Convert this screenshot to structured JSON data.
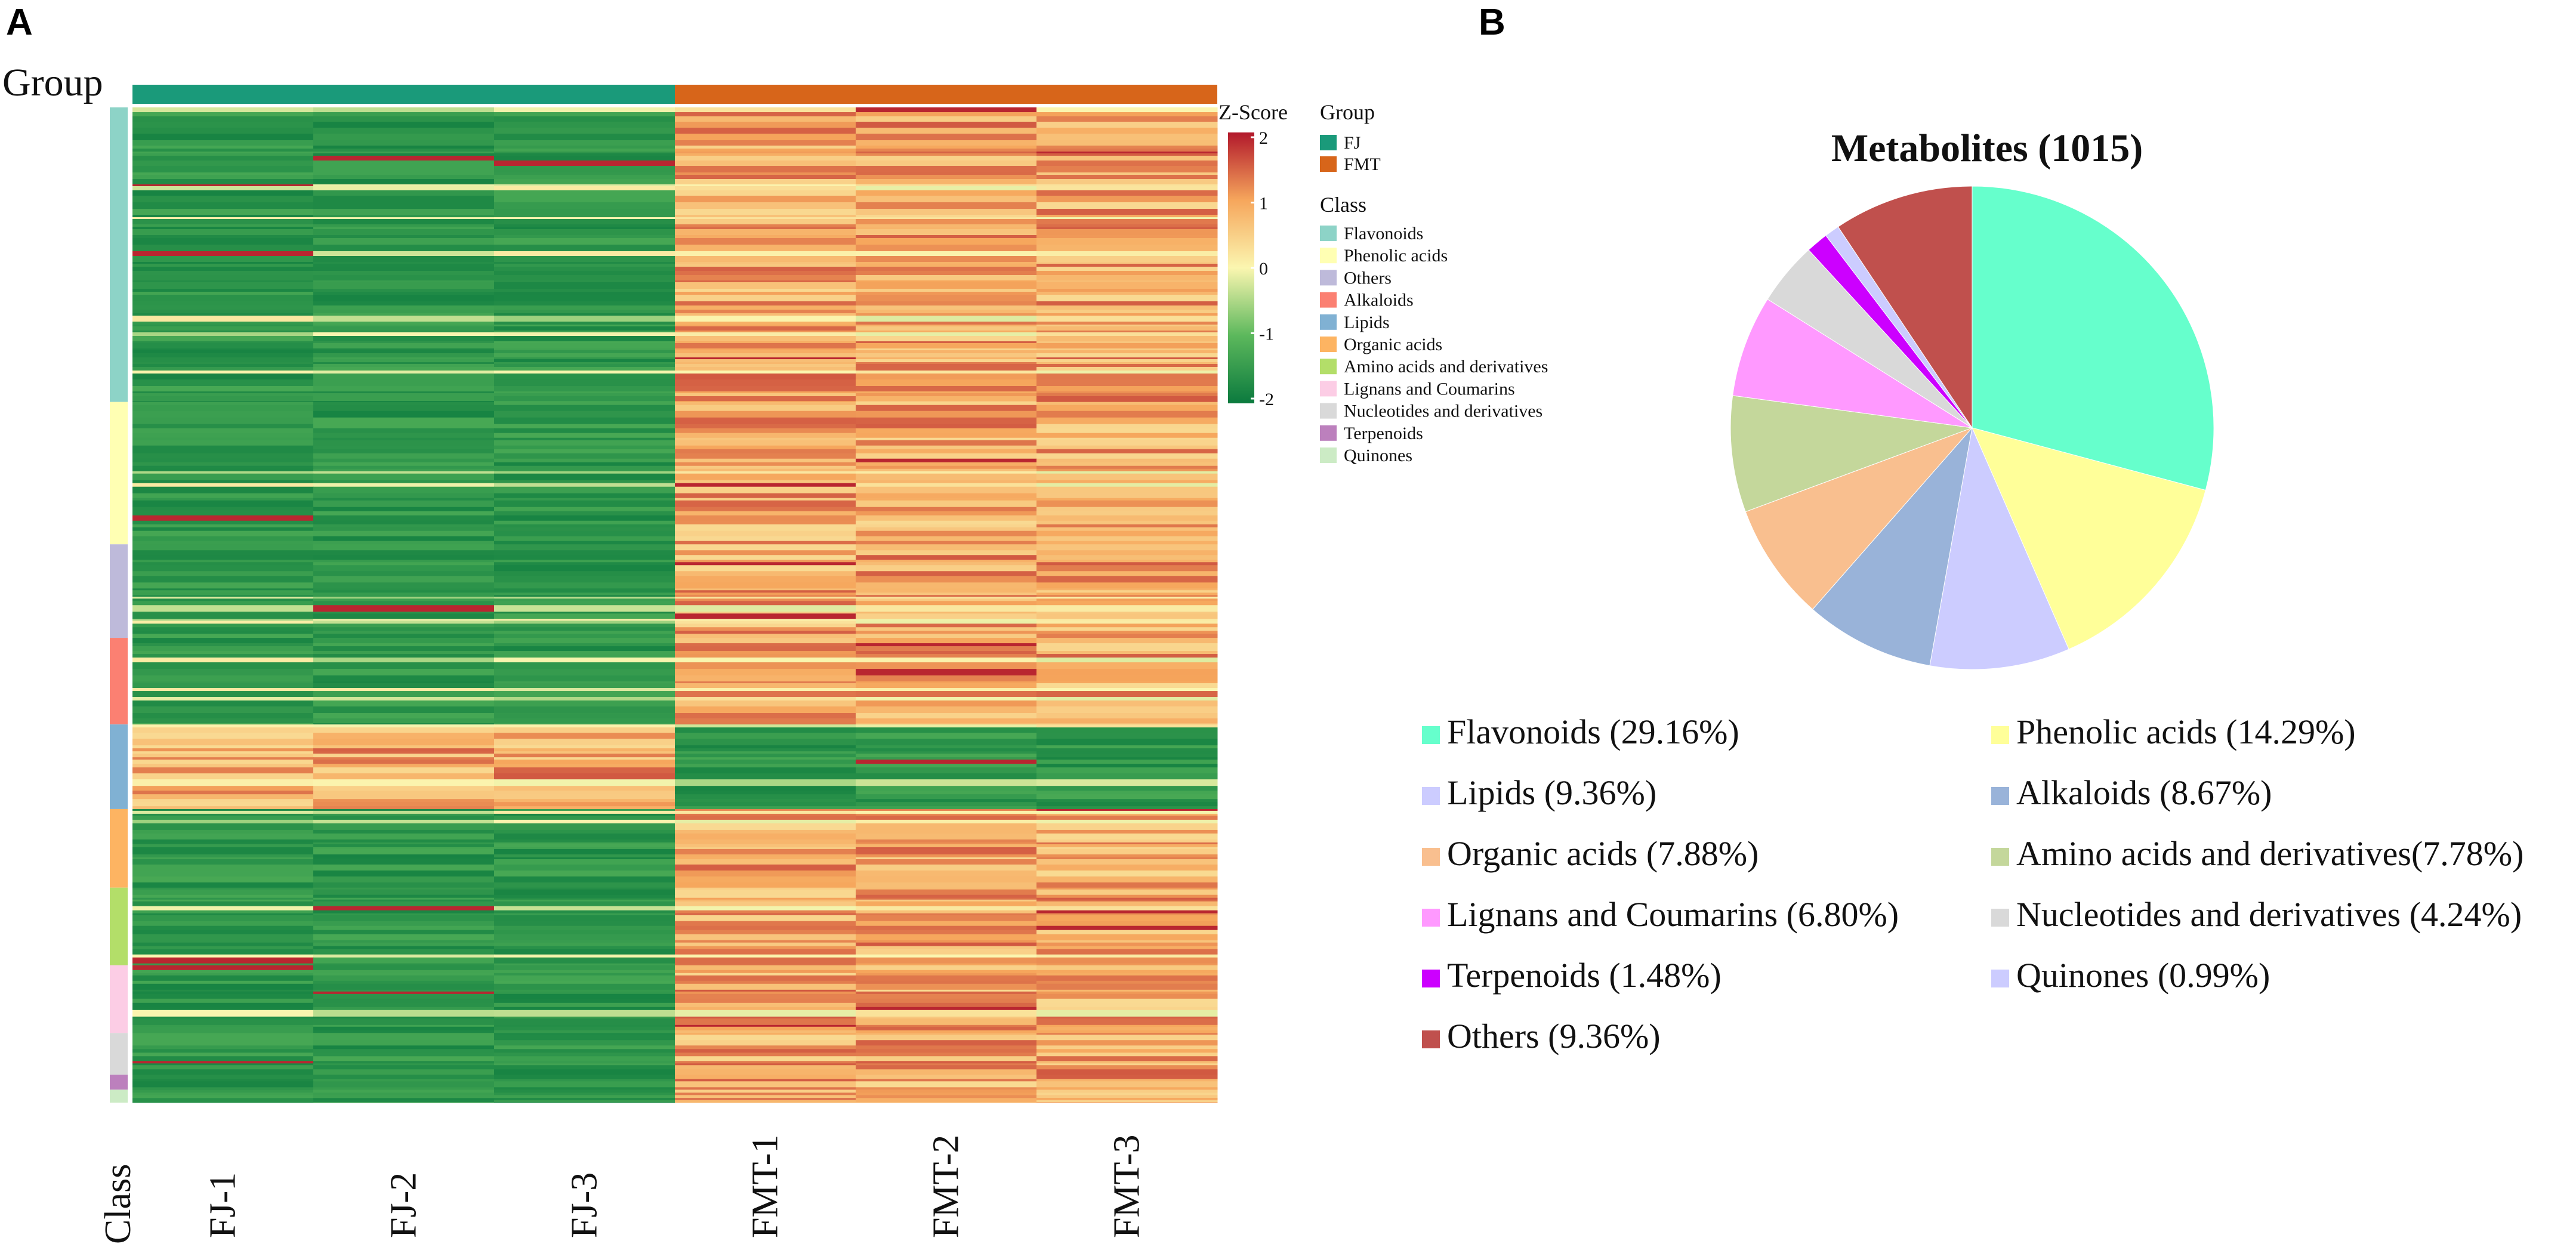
{
  "chart_data": [
    {
      "panel": "A",
      "type": "heatmap",
      "group_label": "Group",
      "class_label": "Class",
      "columns": [
        "FJ-1",
        "FJ-2",
        "FJ-3",
        "FMT-1",
        "FMT-2",
        "FMT-3"
      ],
      "groups": [
        {
          "name": "FJ",
          "color": "#1a9a7a",
          "columns": [
            "FJ-1",
            "FJ-2",
            "FJ-3"
          ]
        },
        {
          "name": "FMT",
          "color": "#d7651a",
          "columns": [
            "FMT-1",
            "FMT-2",
            "FMT-3"
          ]
        }
      ],
      "legend": {
        "zscore_title": "Z-Score",
        "zscore_ticks": [
          "2",
          "1",
          "0",
          "-1",
          "-2"
        ],
        "zscore_colors": [
          "#b2182b",
          "#f6a65c",
          "#fbf6b0",
          "#5cb85c",
          "#0b7a3e"
        ],
        "group_title": "Group",
        "class_title": "Class",
        "classes": [
          {
            "name": "Flavonoids",
            "color": "#8dd3c7"
          },
          {
            "name": "Phenolic acids",
            "color": "#ffffb3"
          },
          {
            "name": "Others",
            "color": "#bebada"
          },
          {
            "name": "Alkaloids",
            "color": "#fb8072"
          },
          {
            "name": "Lipids",
            "color": "#80b1d3"
          },
          {
            "name": "Organic acids",
            "color": "#fdb462"
          },
          {
            "name": "Amino acids and derivatives",
            "color": "#b3de69"
          },
          {
            "name": "Lignans and Coumarins",
            "color": "#fccde5"
          },
          {
            "name": "Nucleotides and derivatives",
            "color": "#d9d9d9"
          },
          {
            "name": "Terpenoids",
            "color": "#bc80bd"
          },
          {
            "name": "Quinones",
            "color": "#ccebc5"
          }
        ]
      },
      "row_blocks": [
        {
          "class": "Flavonoids",
          "share": 0.296,
          "FJ": "low",
          "FMT": "high"
        },
        {
          "class": "Phenolic acids",
          "share": 0.143,
          "FJ": "low",
          "FMT": "high"
        },
        {
          "class": "Others",
          "share": 0.094,
          "FJ": "low",
          "FMT": "high"
        },
        {
          "class": "Alkaloids",
          "share": 0.087,
          "FJ": "low",
          "FMT": "high"
        },
        {
          "class": "Lipids",
          "share": 0.085,
          "FJ": "high",
          "FMT": "low"
        },
        {
          "class": "Organic acids",
          "share": 0.079,
          "FJ": "low",
          "FMT": "high"
        },
        {
          "class": "Amino acids and derivatives",
          "share": 0.078,
          "FJ": "low",
          "FMT": "high"
        },
        {
          "class": "Lignans and Coumarins",
          "share": 0.068,
          "FJ": "low",
          "FMT": "high"
        },
        {
          "class": "Nucleotides and derivatives",
          "share": 0.042,
          "FJ": "low",
          "FMT": "high"
        },
        {
          "class": "Terpenoids",
          "share": 0.015,
          "FJ": "low",
          "FMT": "high"
        },
        {
          "class": "Quinones",
          "share": 0.013,
          "FJ": "low",
          "FMT": "high"
        }
      ]
    },
    {
      "panel": "B",
      "type": "pie",
      "title": "Metabolites (1015)",
      "slices": [
        {
          "label": "Flavonoids (29.16%)",
          "value": 29.16,
          "color": "#66ffcc"
        },
        {
          "label": "Phenolic acids (14.29%)",
          "value": 14.29,
          "color": "#ffff99"
        },
        {
          "label": "Lipids (9.36%)",
          "value": 9.36,
          "color": "#ccccff"
        },
        {
          "label": "Alkaloids (8.67%)",
          "value": 8.67,
          "color": "#99b3d9"
        },
        {
          "label": "Organic acids (7.88%)",
          "value": 7.88,
          "color": "#f9bf8f"
        },
        {
          "label": "Amino acids and derivatives(7.78%)",
          "value": 7.78,
          "color": "#c4d79b"
        },
        {
          "label": "Lignans and Coumarins (6.80%)",
          "value": 6.8,
          "color": "#ff99ff"
        },
        {
          "label": "Nucleotides and derivatives (4.24%)",
          "value": 4.24,
          "color": "#d9d9d9"
        },
        {
          "label": "Terpenoids (1.48%)",
          "value": 1.48,
          "color": "#cc00ff"
        },
        {
          "label": "Quinones (0.99%)",
          "value": 0.99,
          "color": "#ccccff"
        },
        {
          "label": "Others (9.36%)",
          "value": 9.36,
          "color": "#c0504d"
        }
      ]
    }
  ],
  "panel_labels": {
    "a": "A",
    "b": "B"
  }
}
